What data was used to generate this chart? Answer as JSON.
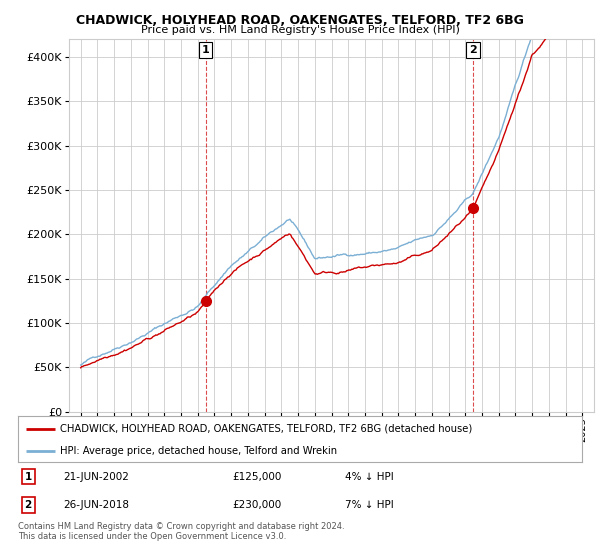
{
  "title": "CHADWICK, HOLYHEAD ROAD, OAKENGATES, TELFORD, TF2 6BG",
  "subtitle": "Price paid vs. HM Land Registry's House Price Index (HPI)",
  "legend_line1": "CHADWICK, HOLYHEAD ROAD, OAKENGATES, TELFORD, TF2 6BG (detached house)",
  "legend_line2": "HPI: Average price, detached house, Telford and Wrekin",
  "sale1_label": "1",
  "sale1_date": "21-JUN-2002",
  "sale1_price": "£125,000",
  "sale1_hpi": "4% ↓ HPI",
  "sale2_label": "2",
  "sale2_date": "26-JUN-2018",
  "sale2_price": "£230,000",
  "sale2_hpi": "7% ↓ HPI",
  "footnote1": "Contains HM Land Registry data © Crown copyright and database right 2024.",
  "footnote2": "This data is licensed under the Open Government Licence v3.0.",
  "red_color": "#cc0000",
  "blue_color": "#7bafd4",
  "ylim": [
    0,
    420000
  ],
  "yticks": [
    0,
    50000,
    100000,
    150000,
    200000,
    250000,
    300000,
    350000,
    400000
  ],
  "sale1_year": 2002.47,
  "sale1_value": 125000,
  "sale2_year": 2018.47,
  "sale2_value": 230000,
  "bg_color": "#ffffff",
  "grid_color": "#cccccc"
}
